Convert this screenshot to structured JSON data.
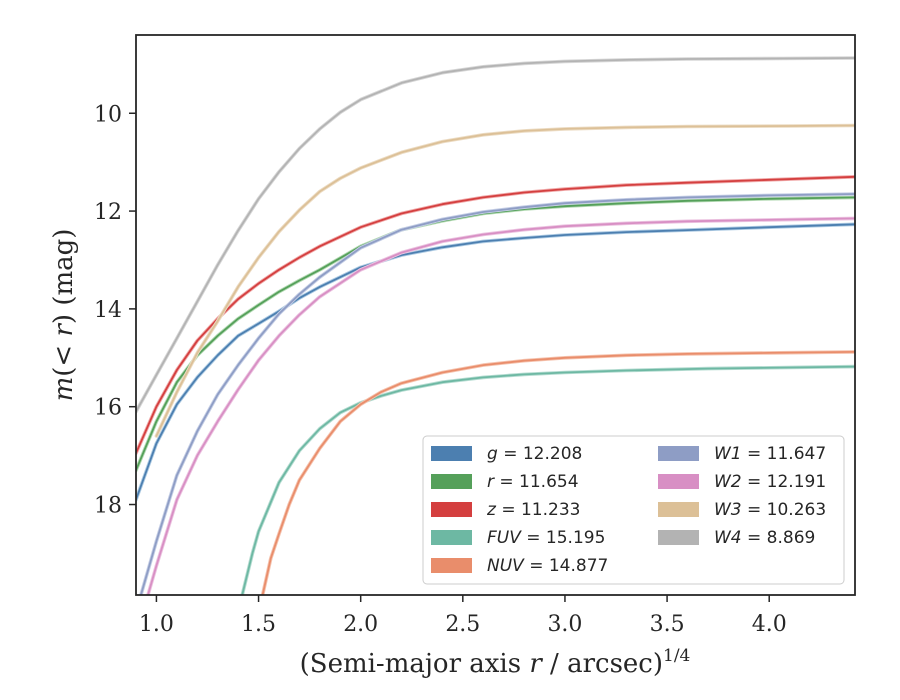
{
  "chart_data": {
    "type": "line",
    "xlabel": "(Semi-major axis r / arcsec)",
    "xlabel_var": "r",
    "xlabel_prefix": "(Semi-major axis ",
    "xlabel_suffix": " / arcsec)",
    "xlabel_exp": "1/4",
    "ylabel": "m(<r) (mag)",
    "ylabel_pre": "m",
    "ylabel_mid": "(",
    "ylabel_var": "< r",
    "ylabel_post": ") (mag)",
    "xlim": [
      0.9,
      4.42
    ],
    "ylim": [
      19.85,
      8.4
    ],
    "y_inverted": true,
    "xticks": [
      1.0,
      1.5,
      2.0,
      2.5,
      3.0,
      3.5,
      4.0
    ],
    "xtick_labels": [
      "1.0",
      "1.5",
      "2.0",
      "2.5",
      "3.0",
      "3.5",
      "4.0"
    ],
    "yticks": [
      10,
      12,
      14,
      16,
      18
    ],
    "ytick_labels": [
      "10",
      "12",
      "14",
      "16",
      "18"
    ],
    "grid": false,
    "legend_position": "lower-right",
    "series": [
      {
        "name": "g",
        "legend_value": "= 12.208",
        "color": "#4c7fb0",
        "light": "#aecbe3",
        "x": [
          0.9,
          1.0,
          1.1,
          1.2,
          1.3,
          1.4,
          1.5,
          1.6,
          1.7,
          1.8,
          2.0,
          2.2,
          2.4,
          2.6,
          2.8,
          3.0,
          3.3,
          3.6,
          4.0,
          4.42
        ],
        "y": [
          17.9,
          16.75,
          15.95,
          15.4,
          14.95,
          14.55,
          14.3,
          14.05,
          13.78,
          13.55,
          13.15,
          12.9,
          12.74,
          12.62,
          12.55,
          12.49,
          12.43,
          12.39,
          12.33,
          12.27
        ]
      },
      {
        "name": "r",
        "legend_value": "= 11.654",
        "color": "#55a05a",
        "light": "#b4dab4",
        "x": [
          0.9,
          1.0,
          1.1,
          1.2,
          1.3,
          1.4,
          1.5,
          1.6,
          1.7,
          1.8,
          2.0,
          2.2,
          2.4,
          2.6,
          2.8,
          3.0,
          3.3,
          3.6,
          4.0,
          4.42
        ],
        "y": [
          17.3,
          16.3,
          15.5,
          14.95,
          14.55,
          14.2,
          13.92,
          13.65,
          13.42,
          13.2,
          12.72,
          12.38,
          12.2,
          12.05,
          11.96,
          11.9,
          11.84,
          11.79,
          11.75,
          11.72
        ]
      },
      {
        "name": "z",
        "legend_value": "= 11.233",
        "color": "#d43f3f",
        "light": "#f0aaaa",
        "x": [
          0.9,
          1.0,
          1.1,
          1.2,
          1.3,
          1.4,
          1.5,
          1.6,
          1.7,
          1.8,
          2.0,
          2.2,
          2.4,
          2.6,
          2.8,
          3.0,
          3.3,
          3.6,
          4.0,
          4.42
        ],
        "y": [
          16.95,
          16.0,
          15.25,
          14.65,
          14.2,
          13.8,
          13.48,
          13.2,
          12.95,
          12.72,
          12.33,
          12.05,
          11.86,
          11.72,
          11.62,
          11.55,
          11.47,
          11.42,
          11.36,
          11.3
        ]
      },
      {
        "name": "FUV",
        "legend_value": "= 15.195",
        "color": "#6db8a3",
        "light": "#b5dcd1",
        "x": [
          1.42,
          1.47,
          1.5,
          1.55,
          1.6,
          1.7,
          1.8,
          1.9,
          2.0,
          2.1,
          2.2,
          2.4,
          2.6,
          2.8,
          3.0,
          3.3,
          3.7,
          4.42
        ],
        "y": [
          19.85,
          19.0,
          18.55,
          18.05,
          17.55,
          16.9,
          16.45,
          16.12,
          15.92,
          15.78,
          15.66,
          15.5,
          15.4,
          15.34,
          15.3,
          15.26,
          15.22,
          15.18
        ]
      },
      {
        "name": "NUV",
        "legend_value": "= 14.877",
        "color": "#e98d6b",
        "light": "#f5c4b0",
        "x": [
          1.52,
          1.56,
          1.6,
          1.65,
          1.7,
          1.8,
          1.9,
          2.0,
          2.1,
          2.2,
          2.4,
          2.6,
          2.8,
          3.0,
          3.3,
          3.6,
          4.0,
          4.42
        ],
        "y": [
          19.85,
          19.1,
          18.6,
          18.0,
          17.5,
          16.85,
          16.3,
          15.95,
          15.7,
          15.52,
          15.3,
          15.15,
          15.06,
          15.0,
          14.95,
          14.92,
          14.9,
          14.88
        ]
      },
      {
        "name": "W1",
        "legend_value": "= 11.647",
        "color": "#8e9dc5",
        "light": "#c6cfe6",
        "x": [
          0.9,
          1.0,
          1.1,
          1.2,
          1.3,
          1.4,
          1.5,
          1.6,
          1.7,
          1.8,
          2.0,
          2.2,
          2.4,
          2.6,
          2.8,
          3.0,
          3.3,
          3.6,
          4.0,
          4.42
        ],
        "y": [
          20.2,
          18.75,
          17.4,
          16.5,
          15.75,
          15.15,
          14.6,
          14.1,
          13.7,
          13.35,
          12.75,
          12.38,
          12.17,
          12.02,
          11.92,
          11.84,
          11.77,
          11.72,
          11.68,
          11.65
        ]
      },
      {
        "name": "W2",
        "legend_value": "= 12.191",
        "color": "#d88fc4",
        "light": "#ecc4e1",
        "x": [
          0.9,
          1.0,
          1.1,
          1.2,
          1.3,
          1.4,
          1.5,
          1.6,
          1.7,
          1.8,
          2.0,
          2.2,
          2.4,
          2.6,
          2.8,
          3.0,
          3.3,
          3.6,
          4.0,
          4.42
        ],
        "y": [
          20.7,
          19.25,
          17.9,
          17.0,
          16.3,
          15.65,
          15.05,
          14.55,
          14.12,
          13.75,
          13.2,
          12.85,
          12.62,
          12.48,
          12.38,
          12.31,
          12.25,
          12.21,
          12.18,
          12.15
        ]
      },
      {
        "name": "W3",
        "legend_value": "= 10.263",
        "color": "#dcc097",
        "light": "#ecdcc4",
        "x": [
          1.0,
          1.1,
          1.2,
          1.3,
          1.4,
          1.5,
          1.6,
          1.7,
          1.8,
          1.9,
          2.0,
          2.2,
          2.4,
          2.6,
          2.8,
          3.0,
          3.3,
          3.6,
          4.1,
          4.42
        ],
        "y": [
          16.6,
          15.7,
          14.9,
          14.25,
          13.55,
          12.95,
          12.42,
          11.98,
          11.6,
          11.33,
          11.12,
          10.8,
          10.58,
          10.44,
          10.36,
          10.32,
          10.29,
          10.27,
          10.26,
          10.25
        ]
      },
      {
        "name": "W4",
        "legend_value": "= 8.869",
        "color": "#b3b3b3",
        "light": "#d6d6d6",
        "x": [
          0.9,
          1.0,
          1.1,
          1.2,
          1.3,
          1.4,
          1.5,
          1.6,
          1.7,
          1.8,
          1.9,
          2.0,
          2.2,
          2.4,
          2.6,
          2.8,
          3.0,
          3.3,
          3.6,
          4.05,
          4.42
        ],
        "y": [
          16.1,
          15.35,
          14.6,
          13.85,
          13.1,
          12.4,
          11.75,
          11.2,
          10.72,
          10.32,
          9.98,
          9.72,
          9.38,
          9.17,
          9.05,
          8.98,
          8.94,
          8.91,
          8.89,
          8.88,
          8.87
        ]
      }
    ]
  }
}
